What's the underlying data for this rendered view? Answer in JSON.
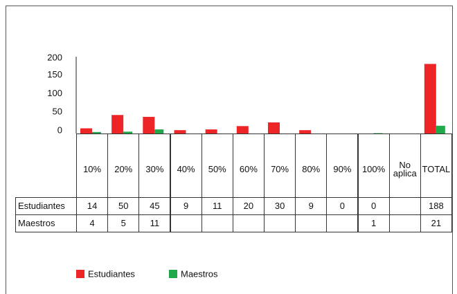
{
  "chart_data": {
    "type": "bar",
    "categories": [
      "10%",
      "20%",
      "30%",
      "40%",
      "50%",
      "60%",
      "70%",
      "80%",
      "90%",
      "100%",
      "No aplica",
      "TOTAL"
    ],
    "series": [
      {
        "name": "Estudiantes",
        "color": "#ee2526",
        "values": [
          14,
          50,
          45,
          9,
          11,
          20,
          30,
          9,
          0,
          0,
          null,
          188
        ]
      },
      {
        "name": "Maestros",
        "color": "#21a84a",
        "values": [
          4,
          5,
          11,
          null,
          null,
          null,
          null,
          null,
          null,
          1,
          null,
          21
        ]
      }
    ],
    "ylim": [
      0,
      200
    ],
    "yticks": [
      0,
      50,
      100,
      150,
      200
    ],
    "grid": false,
    "legend": "bottom"
  }
}
